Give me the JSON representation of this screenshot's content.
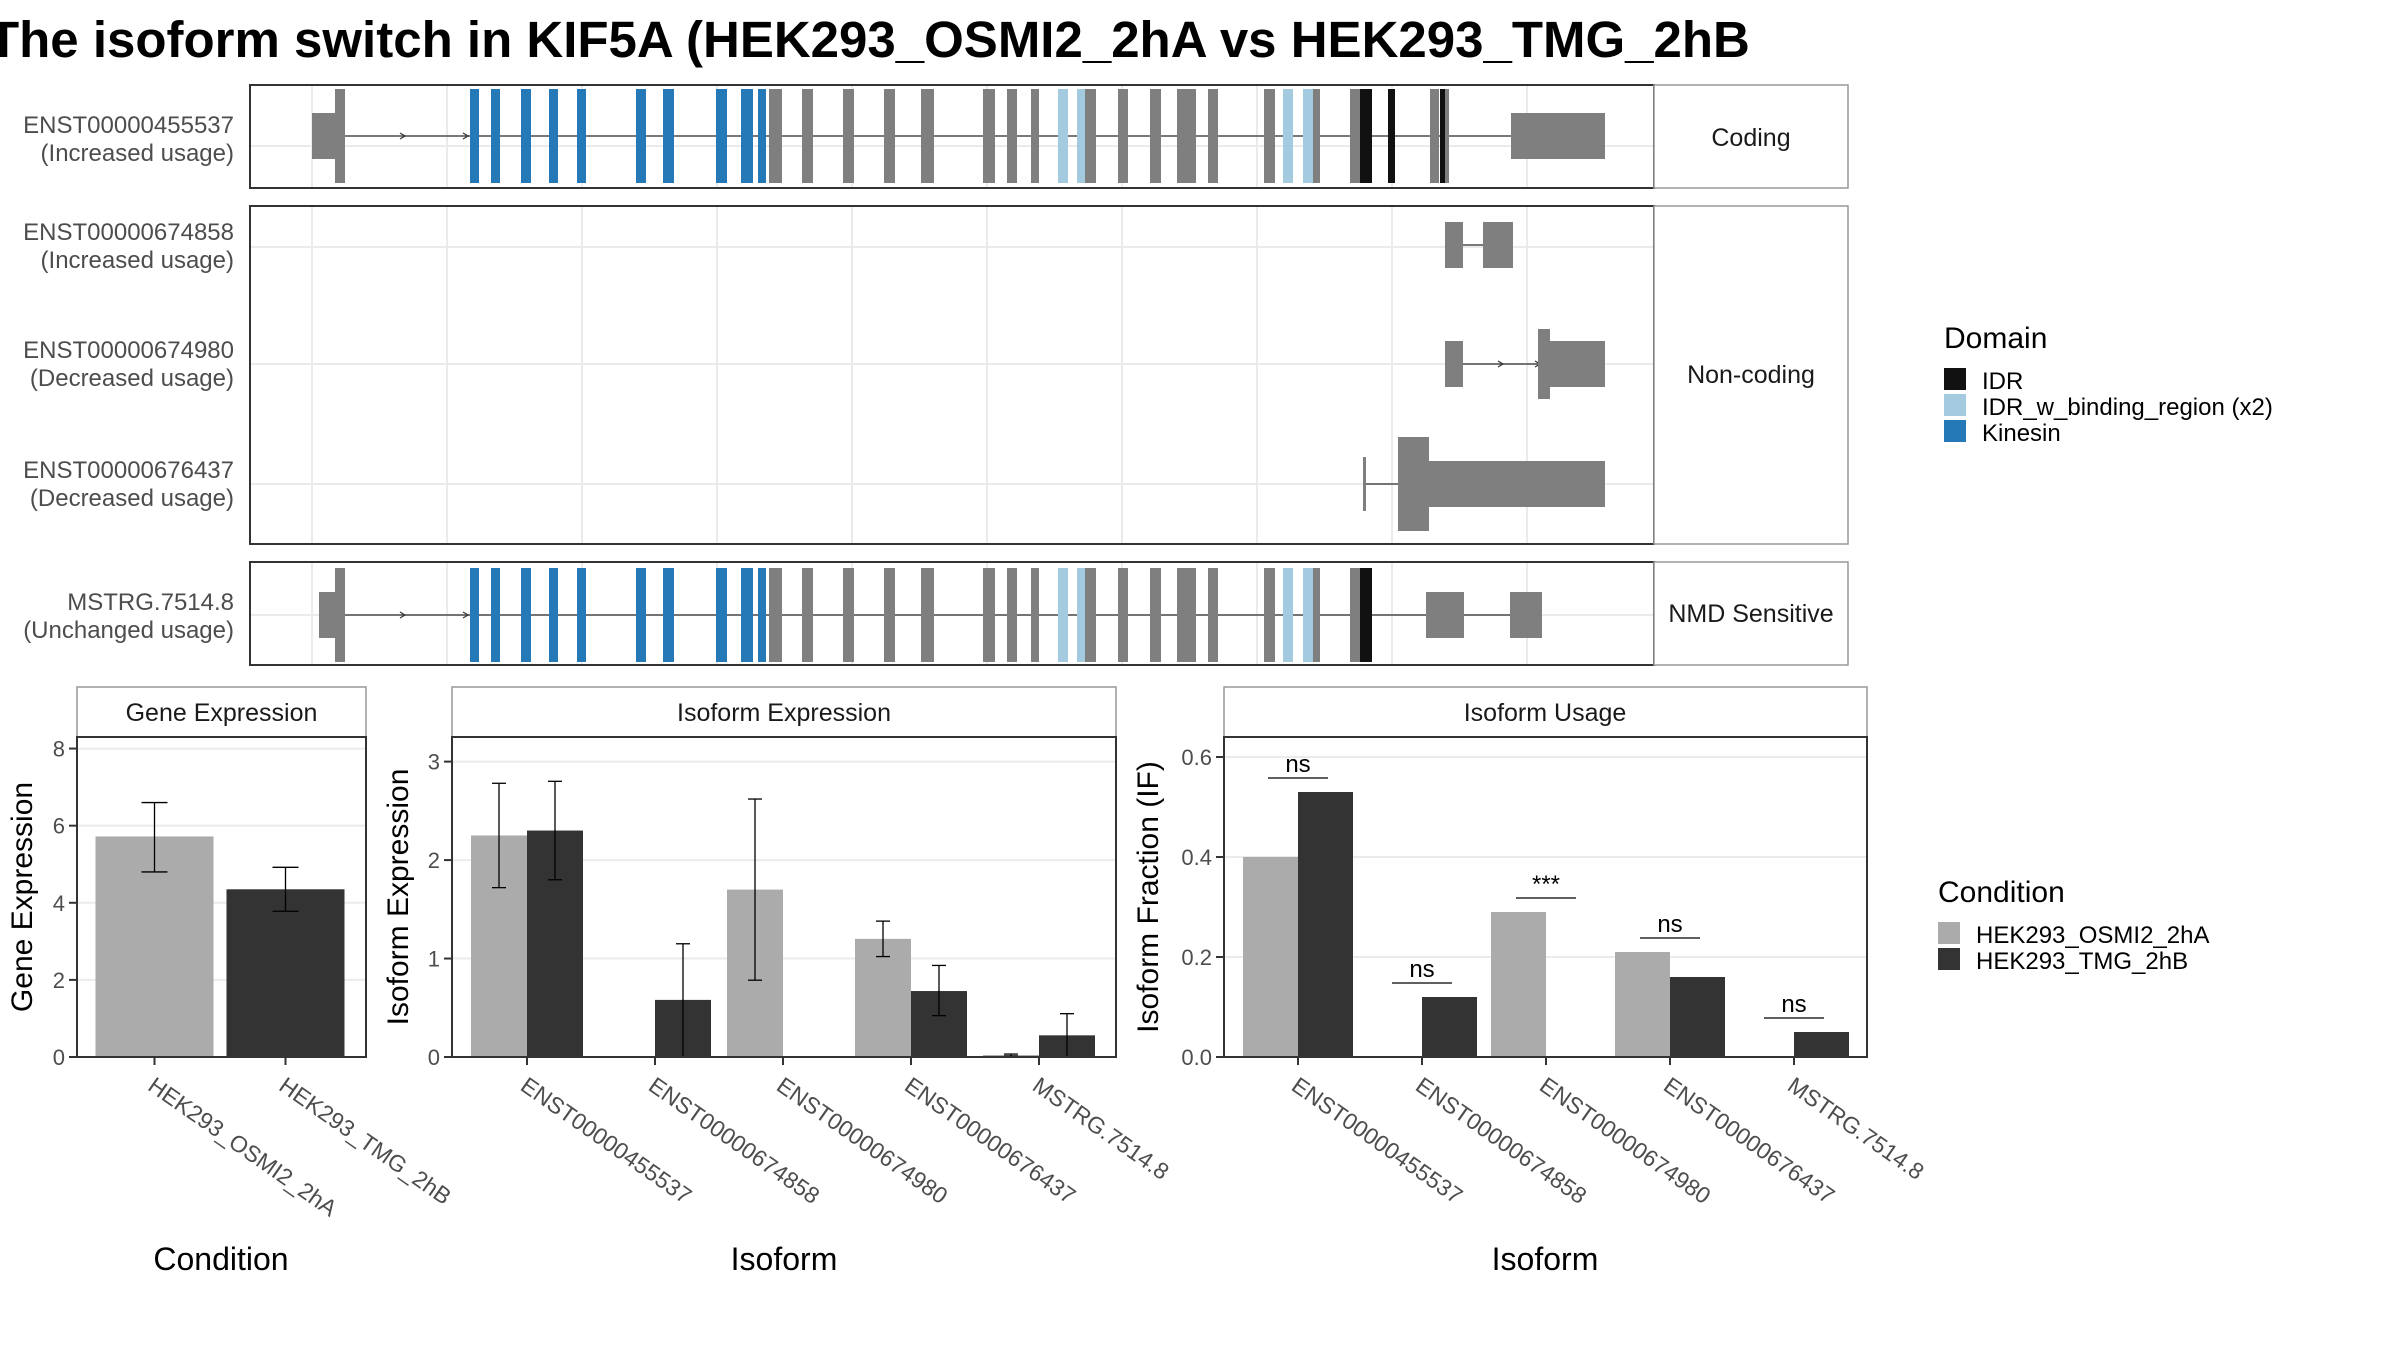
{
  "title": "The isoform switch in KIF5A (HEK293_OSMI2_2hA vs HEK293_TMG_2hB",
  "colors": {
    "kinesin": "#2479B6",
    "idr": "#111111",
    "idr_binding": "#A4CAE0",
    "exon": "#7F7F7F",
    "cond_a": "#ABABAB",
    "cond_b": "#333333",
    "strip": "#F2F2F2",
    "grid": "#EBEBEB"
  },
  "chart_data": [
    {
      "type": "gene-structure",
      "facets": [
        {
          "label": "Coding",
          "tracks": [
            {
              "id": "ENST00000455537",
              "usage": "(Increased usage)"
            }
          ]
        },
        {
          "label": "Non-coding",
          "tracks": [
            {
              "id": "ENST00000674858",
              "usage": "(Increased usage)"
            },
            {
              "id": "ENST00000674980",
              "usage": "(Decreased usage)"
            },
            {
              "id": "ENST00000676437",
              "usage": "(Decreased usage)"
            }
          ]
        },
        {
          "label": "NMD Sensitive",
          "tracks": [
            {
              "id": "MSTRG.7514.8",
              "usage": "(Unchanged usage)"
            }
          ]
        }
      ],
      "legend": {
        "title": "Domain",
        "items": [
          "IDR",
          "IDR_w_binding_region (x2)",
          "Kinesin"
        ]
      }
    },
    {
      "type": "bar",
      "title": "Gene Expression",
      "xlabel": "Condition",
      "ylabel": "Gene Expression",
      "ylim": [
        0,
        8.3
      ],
      "yticks": [
        0,
        2,
        4,
        6,
        8
      ],
      "categories": [
        "HEK293_OSMI2_2hA",
        "HEK293_TMG_2hB"
      ],
      "values": [
        5.72,
        4.35
      ],
      "errors": [
        [
          4.8,
          6.6
        ],
        [
          3.78,
          4.92
        ]
      ]
    },
    {
      "type": "bar",
      "title": "Isoform Expression",
      "xlabel": "Isoform",
      "ylabel": "Isoform Expression",
      "ylim": [
        0,
        3.25
      ],
      "yticks": [
        0,
        1,
        2,
        3
      ],
      "categories": [
        "ENST00000455537",
        "ENST00000674858",
        "ENST00000674980",
        "ENST00000676437",
        "MSTRG.7514.8"
      ],
      "series": [
        {
          "name": "HEK293_OSMI2_2hA",
          "values": [
            2.25,
            0.0,
            1.7,
            1.2,
            0.02
          ],
          "errors": [
            [
              1.72,
              2.78
            ],
            [
              0.0,
              0.0
            ],
            [
              0.78,
              2.62
            ],
            [
              1.02,
              1.38
            ],
            [
              0.01,
              0.03
            ]
          ]
        },
        {
          "name": "HEK293_TMG_2hB",
          "values": [
            2.3,
            0.58,
            0.0,
            0.67,
            0.22
          ],
          "errors": [
            [
              1.8,
              2.8
            ],
            [
              0.0,
              1.15
            ],
            [
              0.0,
              0.0
            ],
            [
              0.42,
              0.93
            ],
            [
              0.0,
              0.44
            ]
          ]
        }
      ]
    },
    {
      "type": "bar",
      "title": "Isoform Usage",
      "xlabel": "Isoform",
      "ylabel": "Isoform Fraction (IF)",
      "ylim": [
        0,
        0.64
      ],
      "yticks": [
        "0.0",
        "0.2",
        "0.4",
        "0.6"
      ],
      "categories": [
        "ENST00000455537",
        "ENST00000674858",
        "ENST00000674980",
        "ENST00000676437",
        "MSTRG.7514.8"
      ],
      "series": [
        {
          "name": "HEK293_OSMI2_2hA",
          "values": [
            0.4,
            0.0,
            0.29,
            0.21,
            0.002
          ]
        },
        {
          "name": "HEK293_TMG_2hB",
          "values": [
            0.53,
            0.12,
            0.0,
            0.16,
            0.05
          ]
        }
      ],
      "annotations": [
        "ns",
        "ns",
        "***",
        "ns",
        "ns"
      ]
    }
  ],
  "legend_condition": {
    "title": "Condition",
    "items": [
      "HEK293_OSMI2_2hA",
      "HEK293_TMG_2hB"
    ]
  }
}
